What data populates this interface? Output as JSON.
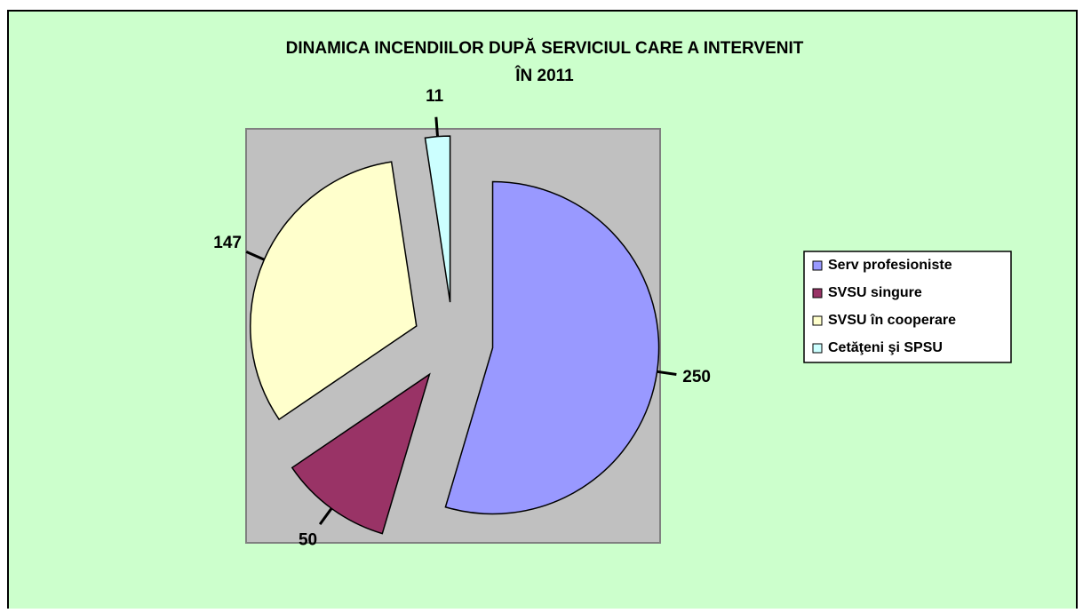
{
  "chart_data": {
    "type": "pie",
    "title": [
      "DINAMICA INCENDIILOR  DUPĂ SERVICIUL CARE A INTERVENIT",
      "ÎN 2011"
    ],
    "categories": [
      "Serv profesioniste",
      "SVSU singure",
      "SVSU în cooperare",
      "Cetăţeni şi SPSU"
    ],
    "values": [
      250,
      50,
      147,
      11
    ],
    "colors": [
      "#9999ff",
      "#993366",
      "#ffffcc",
      "#ccffff"
    ],
    "exploded": true,
    "legend": "right"
  }
}
